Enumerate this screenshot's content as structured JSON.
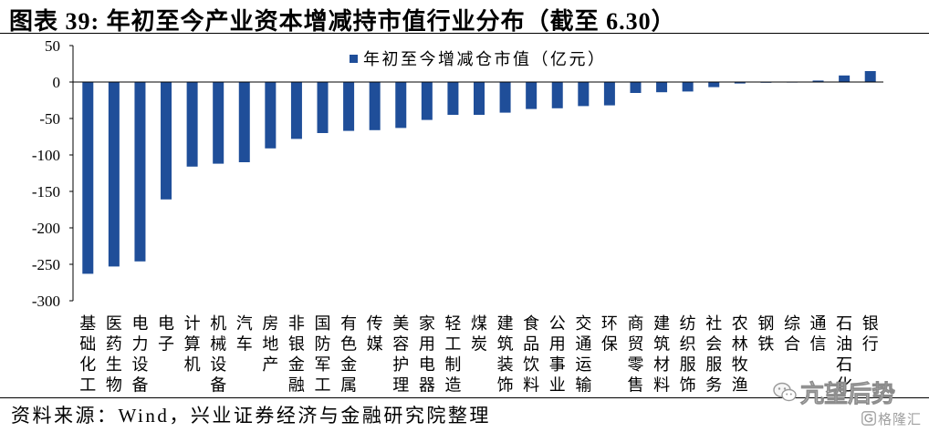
{
  "colors": {
    "bar": "#1f4e99",
    "text": "#000000",
    "watermark": "#9a9a9a"
  },
  "source": "资料来源：Wind，兴业证券经济与金融研究院整理",
  "watermark": {
    "icon": "wechat-icon",
    "text": "亢望后势",
    "logo_icon": "gelonghui-logo-icon",
    "logo_text": "格隆汇"
  },
  "chart_data": {
    "type": "bar",
    "title": "图表 39: 年初至今产业资本增减持市值行业分布（截至 6.30）",
    "ylim": [
      -300,
      50
    ],
    "yticks": [
      50,
      0,
      -50,
      -100,
      -150,
      -200,
      -250,
      -300
    ],
    "grid": false,
    "legend": "top-center",
    "categories": [
      "基础化工",
      "医药生物",
      "电力设备",
      "电子",
      "计算机",
      "机械设备",
      "汽车",
      "房地产",
      "非银金融",
      "国防军工",
      "有色金属",
      "传媒",
      "美容护理",
      "家用电器",
      "轻工制造",
      "煤炭",
      "建筑装饰",
      "食品饮料",
      "公用事业",
      "交通运输",
      "环保",
      "商贸零售",
      "建筑材料",
      "纺织服饰",
      "社会服务",
      "农林牧渔",
      "钢铁",
      "综合",
      "通信",
      "石油石化",
      "银行"
    ],
    "series": [
      {
        "name": "年初至今增减仓市值（亿元）",
        "values": [
          -263,
          -253,
          -246,
          -161,
          -116,
          -112,
          -110,
          -91,
          -78,
          -70,
          -67,
          -66,
          -63,
          -52,
          -45,
          -45,
          -42,
          -37,
          -36,
          -33,
          -32,
          -15,
          -14,
          -13,
          -7,
          -2,
          -1,
          -0.5,
          2,
          9,
          15
        ]
      }
    ]
  }
}
